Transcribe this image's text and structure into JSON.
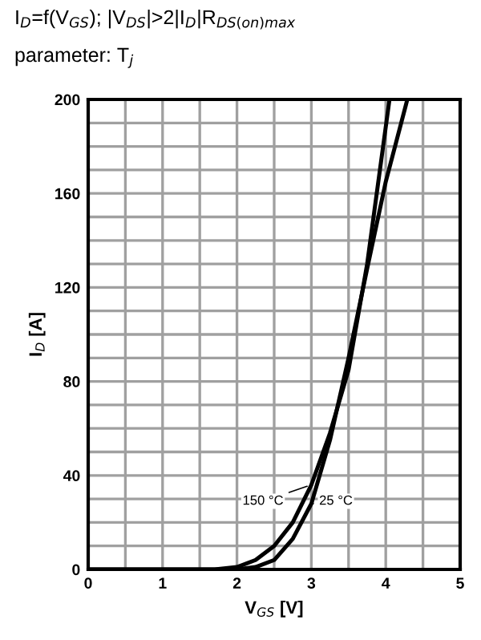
{
  "chart_data": {
    "type": "line",
    "title": "I$_{D}$=f(V$_{GS}$); |V$_{DS}$|>2|I$_{D}$|R$_{DS(on)max}$",
    "subtitle": "parameter: T$_{j}$",
    "xlabel": "V$_{GS}$ [V]",
    "ylabel": "I$_{D}$ [A]",
    "xlim": [
      0,
      5
    ],
    "ylim": [
      0,
      200
    ],
    "xticks": [
      0,
      {
        "value": 0.5,
        "label": null
      },
      1,
      {
        "value": 1.5,
        "label": null
      },
      2,
      {
        "value": 2.5,
        "label": null
      },
      3,
      {
        "value": 3.5,
        "label": null
      },
      4,
      {
        "value": 4.5,
        "label": null
      },
      5
    ],
    "yticks": [
      0,
      {
        "value": 10,
        "label": null
      },
      {
        "value": 20,
        "label": null
      },
      {
        "value": 30,
        "label": null
      },
      40,
      {
        "value": 50,
        "label": null
      },
      {
        "value": 60,
        "label": null
      },
      {
        "value": 70,
        "label": null
      },
      80,
      {
        "value": 90,
        "label": null
      },
      {
        "value": 100,
        "label": null
      },
      {
        "value": 110,
        "label": null
      },
      120,
      {
        "value": 130,
        "label": null
      },
      {
        "value": 140,
        "label": null
      },
      {
        "value": 150,
        "label": null
      },
      160,
      {
        "value": 170,
        "label": null
      },
      {
        "value": 180,
        "label": null
      },
      {
        "value": 190,
        "label": null
      },
      200
    ],
    "grid": true,
    "marker": "none",
    "line_style": "solid",
    "series": [
      {
        "name": "150 °C",
        "color": "#000000",
        "x": [
          0,
          1.7,
          2.0,
          2.25,
          2.5,
          2.75,
          3.0,
          3.25,
          3.5,
          3.75,
          4.05
        ],
        "values": [
          0,
          0,
          1,
          4,
          10,
          20,
          36,
          58,
          85,
          130,
          200
        ]
      },
      {
        "name": "25 °C",
        "color": "#000000",
        "x": [
          0,
          2.0,
          2.25,
          2.5,
          2.75,
          3.0,
          3.25,
          3.5,
          3.75,
          4.0,
          4.29
        ],
        "values": [
          0,
          0,
          1,
          4,
          13,
          28,
          55,
          90,
          128,
          165,
          200
        ]
      }
    ]
  }
}
